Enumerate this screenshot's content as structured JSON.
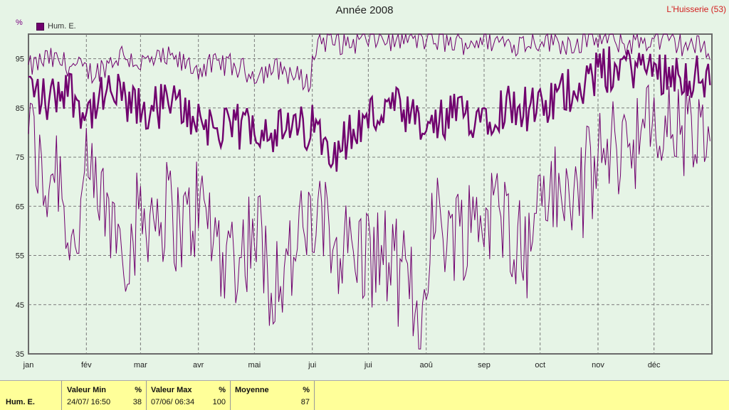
{
  "header": {
    "title": "Année 2008",
    "station": "L'Huisserie (53)",
    "unit": "%"
  },
  "legend": {
    "label": "Hum. E.",
    "color": "#70006e"
  },
  "chart_data": {
    "type": "line",
    "title": "Année 2008",
    "ylabel": "%",
    "ylim": [
      35,
      100
    ],
    "yticks": [
      35,
      45,
      55,
      65,
      75,
      85,
      95
    ],
    "xlim": [
      0,
      366
    ],
    "month_ticks": [
      {
        "label": "jan",
        "day": 0
      },
      {
        "label": "fév",
        "day": 31
      },
      {
        "label": "mar",
        "day": 60
      },
      {
        "label": "avr",
        "day": 91
      },
      {
        "label": "mai",
        "day": 121
      },
      {
        "label": "jui",
        "day": 152
      },
      {
        "label": "jui",
        "day": 182
      },
      {
        "label": "aoû",
        "day": 213
      },
      {
        "label": "sep",
        "day": 244
      },
      {
        "label": "oct",
        "day": 274
      },
      {
        "label": "nov",
        "day": 305
      },
      {
        "label": "déc",
        "day": 335
      }
    ],
    "grid": true,
    "series": [
      {
        "name": "Hum. E.",
        "color": "#70006e",
        "style": "daily max/mean/min",
        "max_keypoints": [
          [
            0,
            93
          ],
          [
            10,
            95
          ],
          [
            20,
            94
          ],
          [
            35,
            92
          ],
          [
            50,
            96
          ],
          [
            60,
            94
          ],
          [
            75,
            95
          ],
          [
            90,
            93
          ],
          [
            105,
            94
          ],
          [
            120,
            92
          ],
          [
            135,
            93
          ],
          [
            150,
            90
          ],
          [
            155,
            99
          ],
          [
            170,
            98
          ],
          [
            182,
            99
          ],
          [
            200,
            99
          ],
          [
            215,
            99
          ],
          [
            230,
            98
          ],
          [
            244,
            99
          ],
          [
            260,
            98
          ],
          [
            275,
            99
          ],
          [
            290,
            98
          ],
          [
            305,
            99
          ],
          [
            320,
            98
          ],
          [
            335,
            99
          ],
          [
            350,
            98
          ],
          [
            365,
            97
          ]
        ],
        "mean_keypoints": [
          [
            0,
            90
          ],
          [
            10,
            86
          ],
          [
            20,
            90
          ],
          [
            31,
            84
          ],
          [
            45,
            88
          ],
          [
            60,
            84
          ],
          [
            75,
            86
          ],
          [
            91,
            83
          ],
          [
            105,
            80
          ],
          [
            121,
            82
          ],
          [
            135,
            80
          ],
          [
            152,
            81
          ],
          [
            165,
            77
          ],
          [
            182,
            83
          ],
          [
            195,
            85
          ],
          [
            213,
            80
          ],
          [
            225,
            83
          ],
          [
            244,
            84
          ],
          [
            260,
            86
          ],
          [
            274,
            84
          ],
          [
            290,
            89
          ],
          [
            305,
            92
          ],
          [
            320,
            94
          ],
          [
            335,
            93
          ],
          [
            350,
            92
          ],
          [
            365,
            90
          ]
        ],
        "min_keypoints": [
          [
            0,
            84
          ],
          [
            8,
            68
          ],
          [
            15,
            75
          ],
          [
            24,
            56
          ],
          [
            31,
            70
          ],
          [
            45,
            62
          ],
          [
            55,
            57
          ],
          [
            60,
            64
          ],
          [
            75,
            64
          ],
          [
            84,
            60
          ],
          [
            91,
            66
          ],
          [
            105,
            55
          ],
          [
            115,
            56
          ],
          [
            121,
            62
          ],
          [
            130,
            50
          ],
          [
            140,
            54
          ],
          [
            152,
            62
          ],
          [
            165,
            58
          ],
          [
            178,
            55
          ],
          [
            190,
            55
          ],
          [
            205,
            48
          ],
          [
            210,
            38
          ],
          [
            215,
            62
          ],
          [
            230,
            60
          ],
          [
            244,
            64
          ],
          [
            258,
            62
          ],
          [
            268,
            55
          ],
          [
            274,
            70
          ],
          [
            285,
            66
          ],
          [
            295,
            68
          ],
          [
            305,
            74
          ],
          [
            320,
            79
          ],
          [
            335,
            80
          ],
          [
            350,
            81
          ],
          [
            365,
            76
          ]
        ]
      }
    ]
  },
  "stats": {
    "series_label": "Hum. E.",
    "min": {
      "label": "Valeur Min",
      "unit": "%",
      "when": "24/07/ 16:50",
      "value": "38"
    },
    "max": {
      "label": "Valeur Max",
      "unit": "%",
      "when": "07/06/ 06:34",
      "value": "100"
    },
    "mean": {
      "label": "Moyenne",
      "unit": "%",
      "value": "87"
    }
  }
}
